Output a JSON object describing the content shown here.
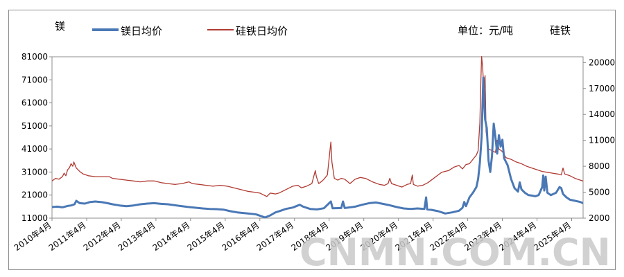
{
  "chart_data": {
    "type": "line",
    "left_axis_label": "镁",
    "right_axis_label": "硅铁",
    "unit_label": "单位：元/吨",
    "grid": false,
    "legend": "top-left",
    "x_tick_labels": [
      "2010年4月",
      "2011年4月",
      "2012年4月",
      "2013年4月",
      "2014年4月",
      "2015年4月",
      "2016年4月",
      "2017年4月",
      "2018年4月",
      "2019年4月",
      "2020年4月",
      "2021年4月",
      "2022年4月",
      "2023年4月",
      "2024年4月",
      "2025年4月"
    ],
    "xlim": [
      2010.25,
      2025.58
    ],
    "y_left": {
      "ticks": [
        11000,
        21000,
        31000,
        41000,
        51000,
        61000,
        71000,
        81000
      ],
      "ylim": [
        11000,
        81000
      ]
    },
    "y_right": {
      "ticks": [
        2000,
        5000,
        8000,
        11000,
        14000,
        17000,
        20000
      ],
      "ylim": [
        2000,
        20667
      ]
    },
    "series": [
      {
        "name": "镁日均价",
        "axis": "left",
        "color": "#4a78b5",
        "points": [
          [
            2010.25,
            15800
          ],
          [
            2010.4,
            16000
          ],
          [
            2010.55,
            15700
          ],
          [
            2010.7,
            16300
          ],
          [
            2010.8,
            16500
          ],
          [
            2010.9,
            17000
          ],
          [
            2010.95,
            18500
          ],
          [
            2011.05,
            17500
          ],
          [
            2011.2,
            17300
          ],
          [
            2011.35,
            18000
          ],
          [
            2011.5,
            18200
          ],
          [
            2011.7,
            17900
          ],
          [
            2011.85,
            17500
          ],
          [
            2012.0,
            17000
          ],
          [
            2012.2,
            16500
          ],
          [
            2012.4,
            16200
          ],
          [
            2012.6,
            16500
          ],
          [
            2012.8,
            17000
          ],
          [
            2013.0,
            17300
          ],
          [
            2013.2,
            17500
          ],
          [
            2013.4,
            17200
          ],
          [
            2013.6,
            17000
          ],
          [
            2013.8,
            16600
          ],
          [
            2014.0,
            16200
          ],
          [
            2014.2,
            15800
          ],
          [
            2014.4,
            15500
          ],
          [
            2014.6,
            15200
          ],
          [
            2014.8,
            15000
          ],
          [
            2015.0,
            14900
          ],
          [
            2015.2,
            14700
          ],
          [
            2015.4,
            14000
          ],
          [
            2015.6,
            13500
          ],
          [
            2015.8,
            13200
          ],
          [
            2016.0,
            12900
          ],
          [
            2016.15,
            12600
          ],
          [
            2016.3,
            11800
          ],
          [
            2016.4,
            11300
          ],
          [
            2016.55,
            12200
          ],
          [
            2016.7,
            13500
          ],
          [
            2016.85,
            14200
          ],
          [
            2017.0,
            15000
          ],
          [
            2017.2,
            15600
          ],
          [
            2017.4,
            16800
          ],
          [
            2017.5,
            16000
          ],
          [
            2017.7,
            15000
          ],
          [
            2017.9,
            14800
          ],
          [
            2018.1,
            15300
          ],
          [
            2018.3,
            18200
          ],
          [
            2018.35,
            15300
          ],
          [
            2018.6,
            15400
          ],
          [
            2018.65,
            18200
          ],
          [
            2018.7,
            15400
          ],
          [
            2019.0,
            16000
          ],
          [
            2019.2,
            16800
          ],
          [
            2019.4,
            17500
          ],
          [
            2019.6,
            17800
          ],
          [
            2019.8,
            17200
          ],
          [
            2020.0,
            16600
          ],
          [
            2020.2,
            15800
          ],
          [
            2020.4,
            15200
          ],
          [
            2020.6,
            15000
          ],
          [
            2020.8,
            15200
          ],
          [
            2021.0,
            15000
          ],
          [
            2021.05,
            20000
          ],
          [
            2021.08,
            14800
          ],
          [
            2021.2,
            14600
          ],
          [
            2021.4,
            14000
          ],
          [
            2021.6,
            13000
          ],
          [
            2021.8,
            13500
          ],
          [
            2022.0,
            14200
          ],
          [
            2022.1,
            15500
          ],
          [
            2022.15,
            18000
          ],
          [
            2022.2,
            16200
          ],
          [
            2022.3,
            20000
          ],
          [
            2022.4,
            22000
          ],
          [
            2022.5,
            24500
          ],
          [
            2022.55,
            28000
          ],
          [
            2022.6,
            35000
          ],
          [
            2022.65,
            46000
          ],
          [
            2022.7,
            72000
          ],
          [
            2022.75,
            54000
          ],
          [
            2022.8,
            50000
          ],
          [
            2022.85,
            36000
          ],
          [
            2022.9,
            31000
          ],
          [
            2022.95,
            38000
          ],
          [
            2023.0,
            52000
          ],
          [
            2023.05,
            46000
          ],
          [
            2023.1,
            39000
          ],
          [
            2023.15,
            47000
          ],
          [
            2023.2,
            42000
          ],
          [
            2023.25,
            45000
          ],
          [
            2023.3,
            37000
          ],
          [
            2023.4,
            34000
          ],
          [
            2023.5,
            28000
          ],
          [
            2023.6,
            24000
          ],
          [
            2023.7,
            22500
          ],
          [
            2023.75,
            26500
          ],
          [
            2023.8,
            23500
          ],
          [
            2023.9,
            22000
          ],
          [
            2024.0,
            21000
          ],
          [
            2024.1,
            20800
          ],
          [
            2024.2,
            20500
          ],
          [
            2024.3,
            21000
          ],
          [
            2024.4,
            24500
          ],
          [
            2024.43,
            29500
          ],
          [
            2024.46,
            23000
          ],
          [
            2024.5,
            29000
          ],
          [
            2024.55,
            22000
          ],
          [
            2024.65,
            21000
          ],
          [
            2024.8,
            22000
          ],
          [
            2024.9,
            24500
          ],
          [
            2024.95,
            24000
          ],
          [
            2025.0,
            21500
          ],
          [
            2025.1,
            20000
          ],
          [
            2025.2,
            19000
          ],
          [
            2025.35,
            18500
          ],
          [
            2025.5,
            18000
          ],
          [
            2025.58,
            17500
          ],
          [
            2025.65,
            18200
          ],
          [
            2025.75,
            17000
          ],
          [
            2025.85,
            18000
          ],
          [
            2025.95,
            17200
          ],
          [
            2026.0,
            16800
          ],
          [
            2026.05,
            17900
          ]
        ]
      },
      {
        "name": "硅铁日均价",
        "axis": "right",
        "color": "#b03a32",
        "points": [
          [
            2010.25,
            6300
          ],
          [
            2010.35,
            6600
          ],
          [
            2010.45,
            6500
          ],
          [
            2010.55,
            6800
          ],
          [
            2010.6,
            7200
          ],
          [
            2010.65,
            6900
          ],
          [
            2010.7,
            7600
          ],
          [
            2010.75,
            7800
          ],
          [
            2010.8,
            8300
          ],
          [
            2010.85,
            8000
          ],
          [
            2010.88,
            8500
          ],
          [
            2010.95,
            7800
          ],
          [
            2011.05,
            7400
          ],
          [
            2011.15,
            7100
          ],
          [
            2011.3,
            6900
          ],
          [
            2011.5,
            6800
          ],
          [
            2011.7,
            6800
          ],
          [
            2011.9,
            6800
          ],
          [
            2012.0,
            6600
          ],
          [
            2012.2,
            6500
          ],
          [
            2012.4,
            6400
          ],
          [
            2012.6,
            6300
          ],
          [
            2012.8,
            6200
          ],
          [
            2013.0,
            6300
          ],
          [
            2013.2,
            6300
          ],
          [
            2013.4,
            6100
          ],
          [
            2013.6,
            6000
          ],
          [
            2013.8,
            5900
          ],
          [
            2014.0,
            6000
          ],
          [
            2014.2,
            6200
          ],
          [
            2014.3,
            6000
          ],
          [
            2014.5,
            5900
          ],
          [
            2014.7,
            5800
          ],
          [
            2014.9,
            5700
          ],
          [
            2015.1,
            5800
          ],
          [
            2015.3,
            5700
          ],
          [
            2015.5,
            5500
          ],
          [
            2015.7,
            5300
          ],
          [
            2015.9,
            5100
          ],
          [
            2016.1,
            5000
          ],
          [
            2016.25,
            4900
          ],
          [
            2016.35,
            4700
          ],
          [
            2016.45,
            4500
          ],
          [
            2016.55,
            4900
          ],
          [
            2016.7,
            4800
          ],
          [
            2016.8,
            4900
          ],
          [
            2016.9,
            5100
          ],
          [
            2017.0,
            5300
          ],
          [
            2017.2,
            5700
          ],
          [
            2017.35,
            5800
          ],
          [
            2017.45,
            5500
          ],
          [
            2017.6,
            5700
          ],
          [
            2017.75,
            6000
          ],
          [
            2017.85,
            7500
          ],
          [
            2017.88,
            6800
          ],
          [
            2017.95,
            6000
          ],
          [
            2018.05,
            6300
          ],
          [
            2018.1,
            6500
          ],
          [
            2018.2,
            7000
          ],
          [
            2018.3,
            10800
          ],
          [
            2018.33,
            8500
          ],
          [
            2018.4,
            6600
          ],
          [
            2018.5,
            6400
          ],
          [
            2018.6,
            6600
          ],
          [
            2018.7,
            6500
          ],
          [
            2018.85,
            6000
          ],
          [
            2019.0,
            6500
          ],
          [
            2019.15,
            6700
          ],
          [
            2019.3,
            6600
          ],
          [
            2019.5,
            6200
          ],
          [
            2019.7,
            5900
          ],
          [
            2019.85,
            5800
          ],
          [
            2019.95,
            6000
          ],
          [
            2020.0,
            6600
          ],
          [
            2020.05,
            6000
          ],
          [
            2020.2,
            5800
          ],
          [
            2020.35,
            5600
          ],
          [
            2020.5,
            5900
          ],
          [
            2020.6,
            6000
          ],
          [
            2020.65,
            7000
          ],
          [
            2020.68,
            5900
          ],
          [
            2020.8,
            5700
          ],
          [
            2020.95,
            5800
          ],
          [
            2021.1,
            6100
          ],
          [
            2021.3,
            6700
          ],
          [
            2021.5,
            7300
          ],
          [
            2021.7,
            7500
          ],
          [
            2021.85,
            7900
          ],
          [
            2022.0,
            8100
          ],
          [
            2022.1,
            7700
          ],
          [
            2022.2,
            8200
          ],
          [
            2022.3,
            8300
          ],
          [
            2022.4,
            8800
          ],
          [
            2022.5,
            9300
          ],
          [
            2022.55,
            9800
          ],
          [
            2022.6,
            13000
          ],
          [
            2022.63,
            18000
          ],
          [
            2022.65,
            20700
          ],
          [
            2022.68,
            19500
          ],
          [
            2022.72,
            16500
          ],
          [
            2022.75,
            18500
          ],
          [
            2022.78,
            12000
          ],
          [
            2022.85,
            10000
          ],
          [
            2022.95,
            9800
          ],
          [
            2023.05,
            9600
          ],
          [
            2023.1,
            11000
          ],
          [
            2023.15,
            10000
          ],
          [
            2023.25,
            9700
          ],
          [
            2023.35,
            9000
          ],
          [
            2023.5,
            8800
          ],
          [
            2023.65,
            8500
          ],
          [
            2023.8,
            8300
          ],
          [
            2023.95,
            8000
          ],
          [
            2024.1,
            7800
          ],
          [
            2024.25,
            7600
          ],
          [
            2024.4,
            7400
          ],
          [
            2024.55,
            7300
          ],
          [
            2024.7,
            7200
          ],
          [
            2024.85,
            7100
          ],
          [
            2024.95,
            7000
          ],
          [
            2025.0,
            7800
          ],
          [
            2025.05,
            7100
          ],
          [
            2025.2,
            6900
          ],
          [
            2025.35,
            6600
          ],
          [
            2025.5,
            6400
          ],
          [
            2025.65,
            6200
          ],
          [
            2025.75,
            6000
          ],
          [
            2025.85,
            5800
          ],
          [
            2025.9,
            5600
          ],
          [
            2025.95,
            5800
          ],
          [
            2026.0,
            5700
          ],
          [
            2026.05,
            5800
          ]
        ]
      }
    ]
  },
  "watermark": "CNMN.COM.CN"
}
